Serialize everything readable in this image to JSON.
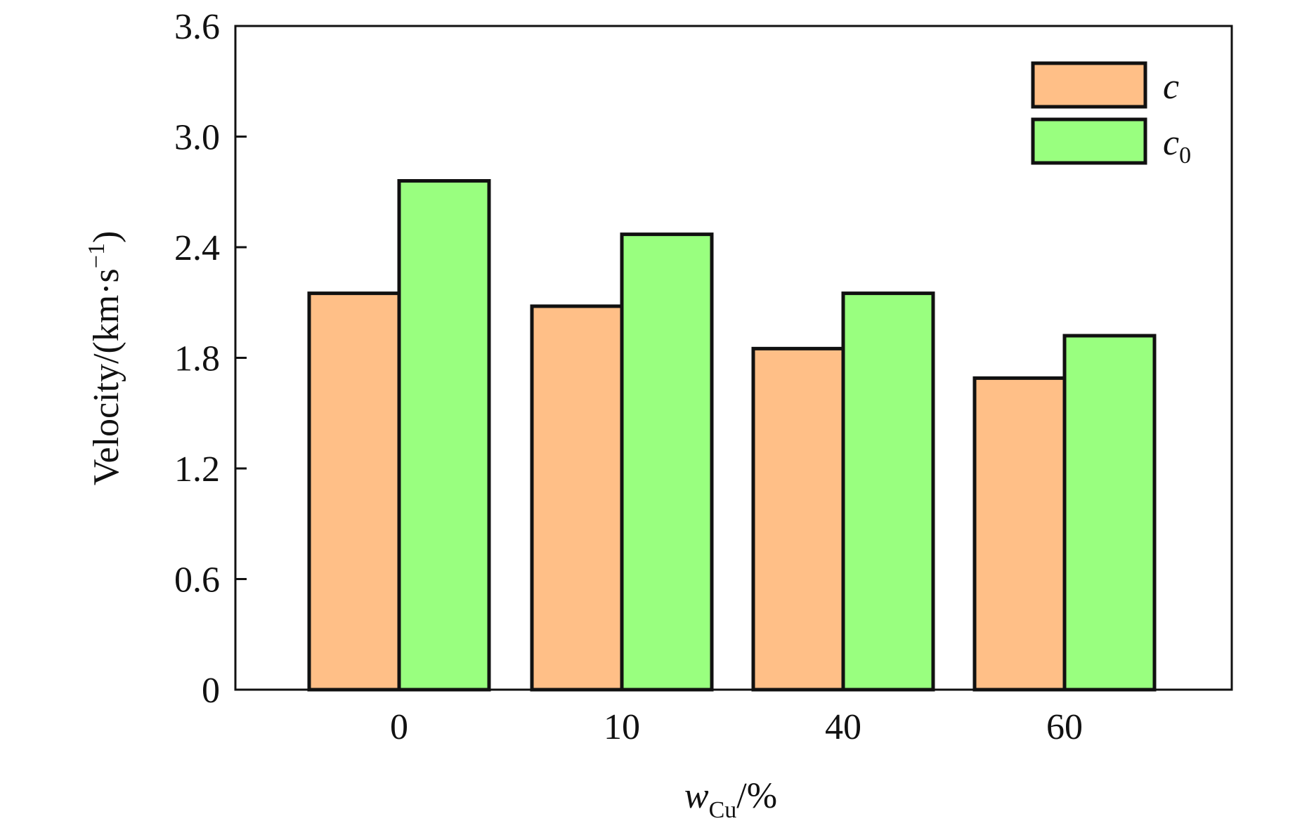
{
  "chart_data": {
    "type": "bar",
    "title": "",
    "categories": [
      "0",
      "10",
      "40",
      "60"
    ],
    "series": [
      {
        "name": "c",
        "name_subscript": "",
        "color": "#FFBF87",
        "values": [
          2.15,
          2.08,
          1.85,
          1.69
        ]
      },
      {
        "name": "c",
        "name_subscript": "0",
        "color": "#99FF7F",
        "values": [
          2.76,
          2.47,
          2.15,
          1.92
        ]
      }
    ],
    "xlabel": {
      "main": "w",
      "subscript": "Cu",
      "suffix": "/%"
    },
    "ylabel": {
      "main": "Velocity/(km·s",
      "superscript": "−1",
      "suffix": ")"
    },
    "ylim": [
      0,
      3.6
    ],
    "yticks": [
      "0",
      "0.6",
      "1.2",
      "1.8",
      "2.4",
      "3.0",
      "3.6"
    ],
    "grid": false,
    "legend_position": "top-right",
    "bar_edge_color": "#111111"
  }
}
